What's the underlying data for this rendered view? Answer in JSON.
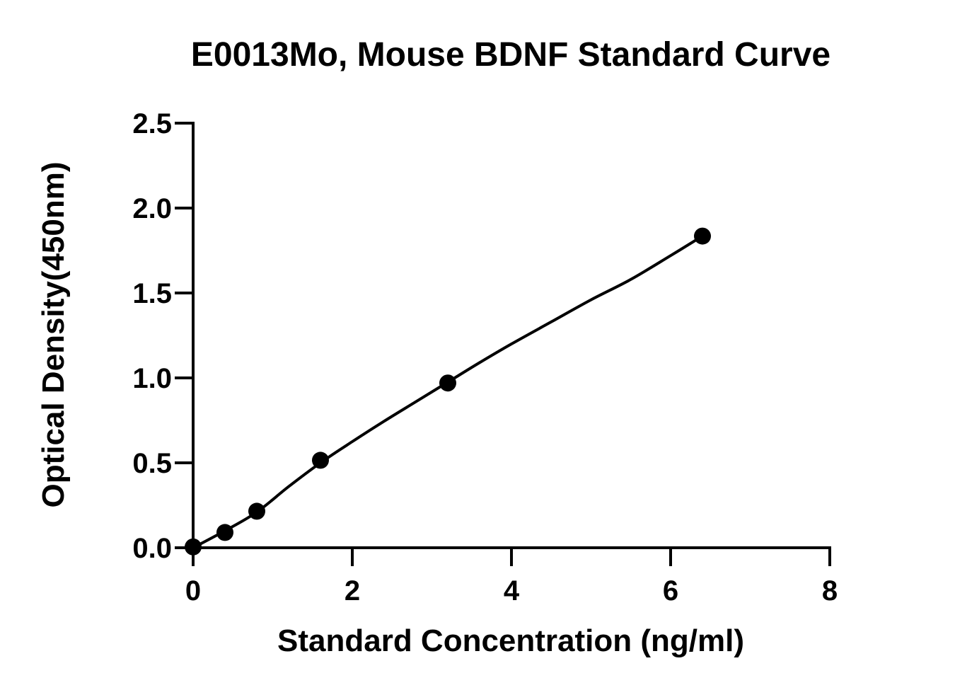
{
  "chart_data": {
    "type": "scatter",
    "title": "E0013Mo, Mouse BDNF Standard Curve",
    "xlabel": "Standard Concentration (ng/ml)",
    "ylabel": "Optical Density(450nm)",
    "xlim": [
      0,
      8
    ],
    "ylim": [
      0,
      2.5
    ],
    "x_ticks": [
      "0",
      "2",
      "4",
      "6",
      "8"
    ],
    "y_ticks": [
      "0.0",
      "0.5",
      "1.0",
      "1.5",
      "2.0",
      "2.5"
    ],
    "grid": false,
    "series": [
      {
        "x": [
          0,
          0.4,
          0.8,
          1.6,
          3.2,
          6.4
        ],
        "y": [
          0.005,
          0.09,
          0.215,
          0.515,
          0.97,
          1.835
        ]
      }
    ],
    "fit_curve": {
      "type": "smooth fit line through standards",
      "x": [
        0,
        0.4,
        0.8,
        1.2,
        1.6,
        2.0,
        2.4,
        2.8,
        3.2,
        3.6,
        4.0,
        4.5,
        5.0,
        5.5,
        6.0,
        6.4
      ],
      "y": [
        0.0,
        0.1,
        0.21,
        0.36,
        0.5,
        0.625,
        0.745,
        0.86,
        0.975,
        1.09,
        1.2,
        1.33,
        1.46,
        1.58,
        1.72,
        1.835
      ]
    },
    "colors": {
      "points": "#000000",
      "line": "#000000",
      "axes": "#000000"
    }
  }
}
